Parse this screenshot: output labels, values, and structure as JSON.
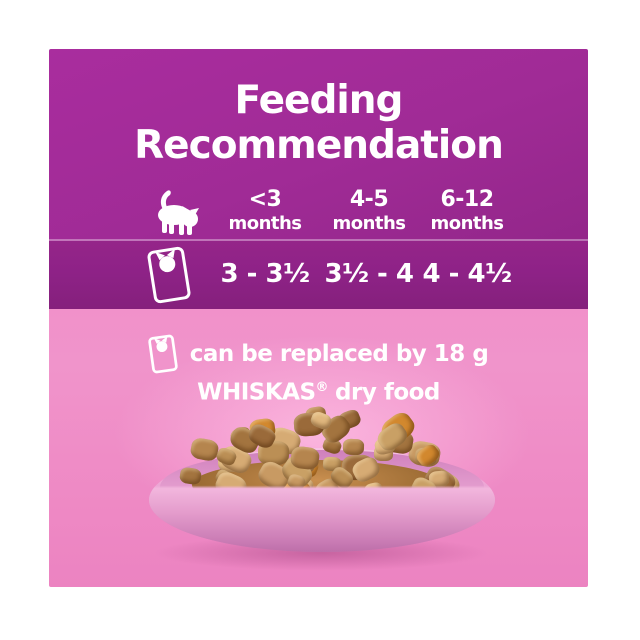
{
  "title": {
    "line1": "Feeding",
    "line2": "Recommendation"
  },
  "feeding_table": {
    "age_columns": [
      {
        "range": "<3",
        "unit": "months"
      },
      {
        "range": "4-5",
        "unit": "months"
      },
      {
        "range": "6-12",
        "unit": "months"
      }
    ],
    "pouches_per_day": [
      "3 - 3½",
      "3½ - 4",
      "4 - 4½"
    ],
    "icons": {
      "header_row": "kitten-icon",
      "value_row": "pouch-icon"
    }
  },
  "note": {
    "line1": "can be replaced by 18 g",
    "brand": "WHISKAS",
    "trademark": "®",
    "line2_rest": "dry food"
  },
  "colors": {
    "purple": "#a02b96",
    "purple_highlight": "#a92d9e",
    "purple_low": "#93268a",
    "purple_band": "#8e2287",
    "pink": "#f094cb",
    "text": "#ffffff",
    "plate_pink": "#efa9d7"
  }
}
